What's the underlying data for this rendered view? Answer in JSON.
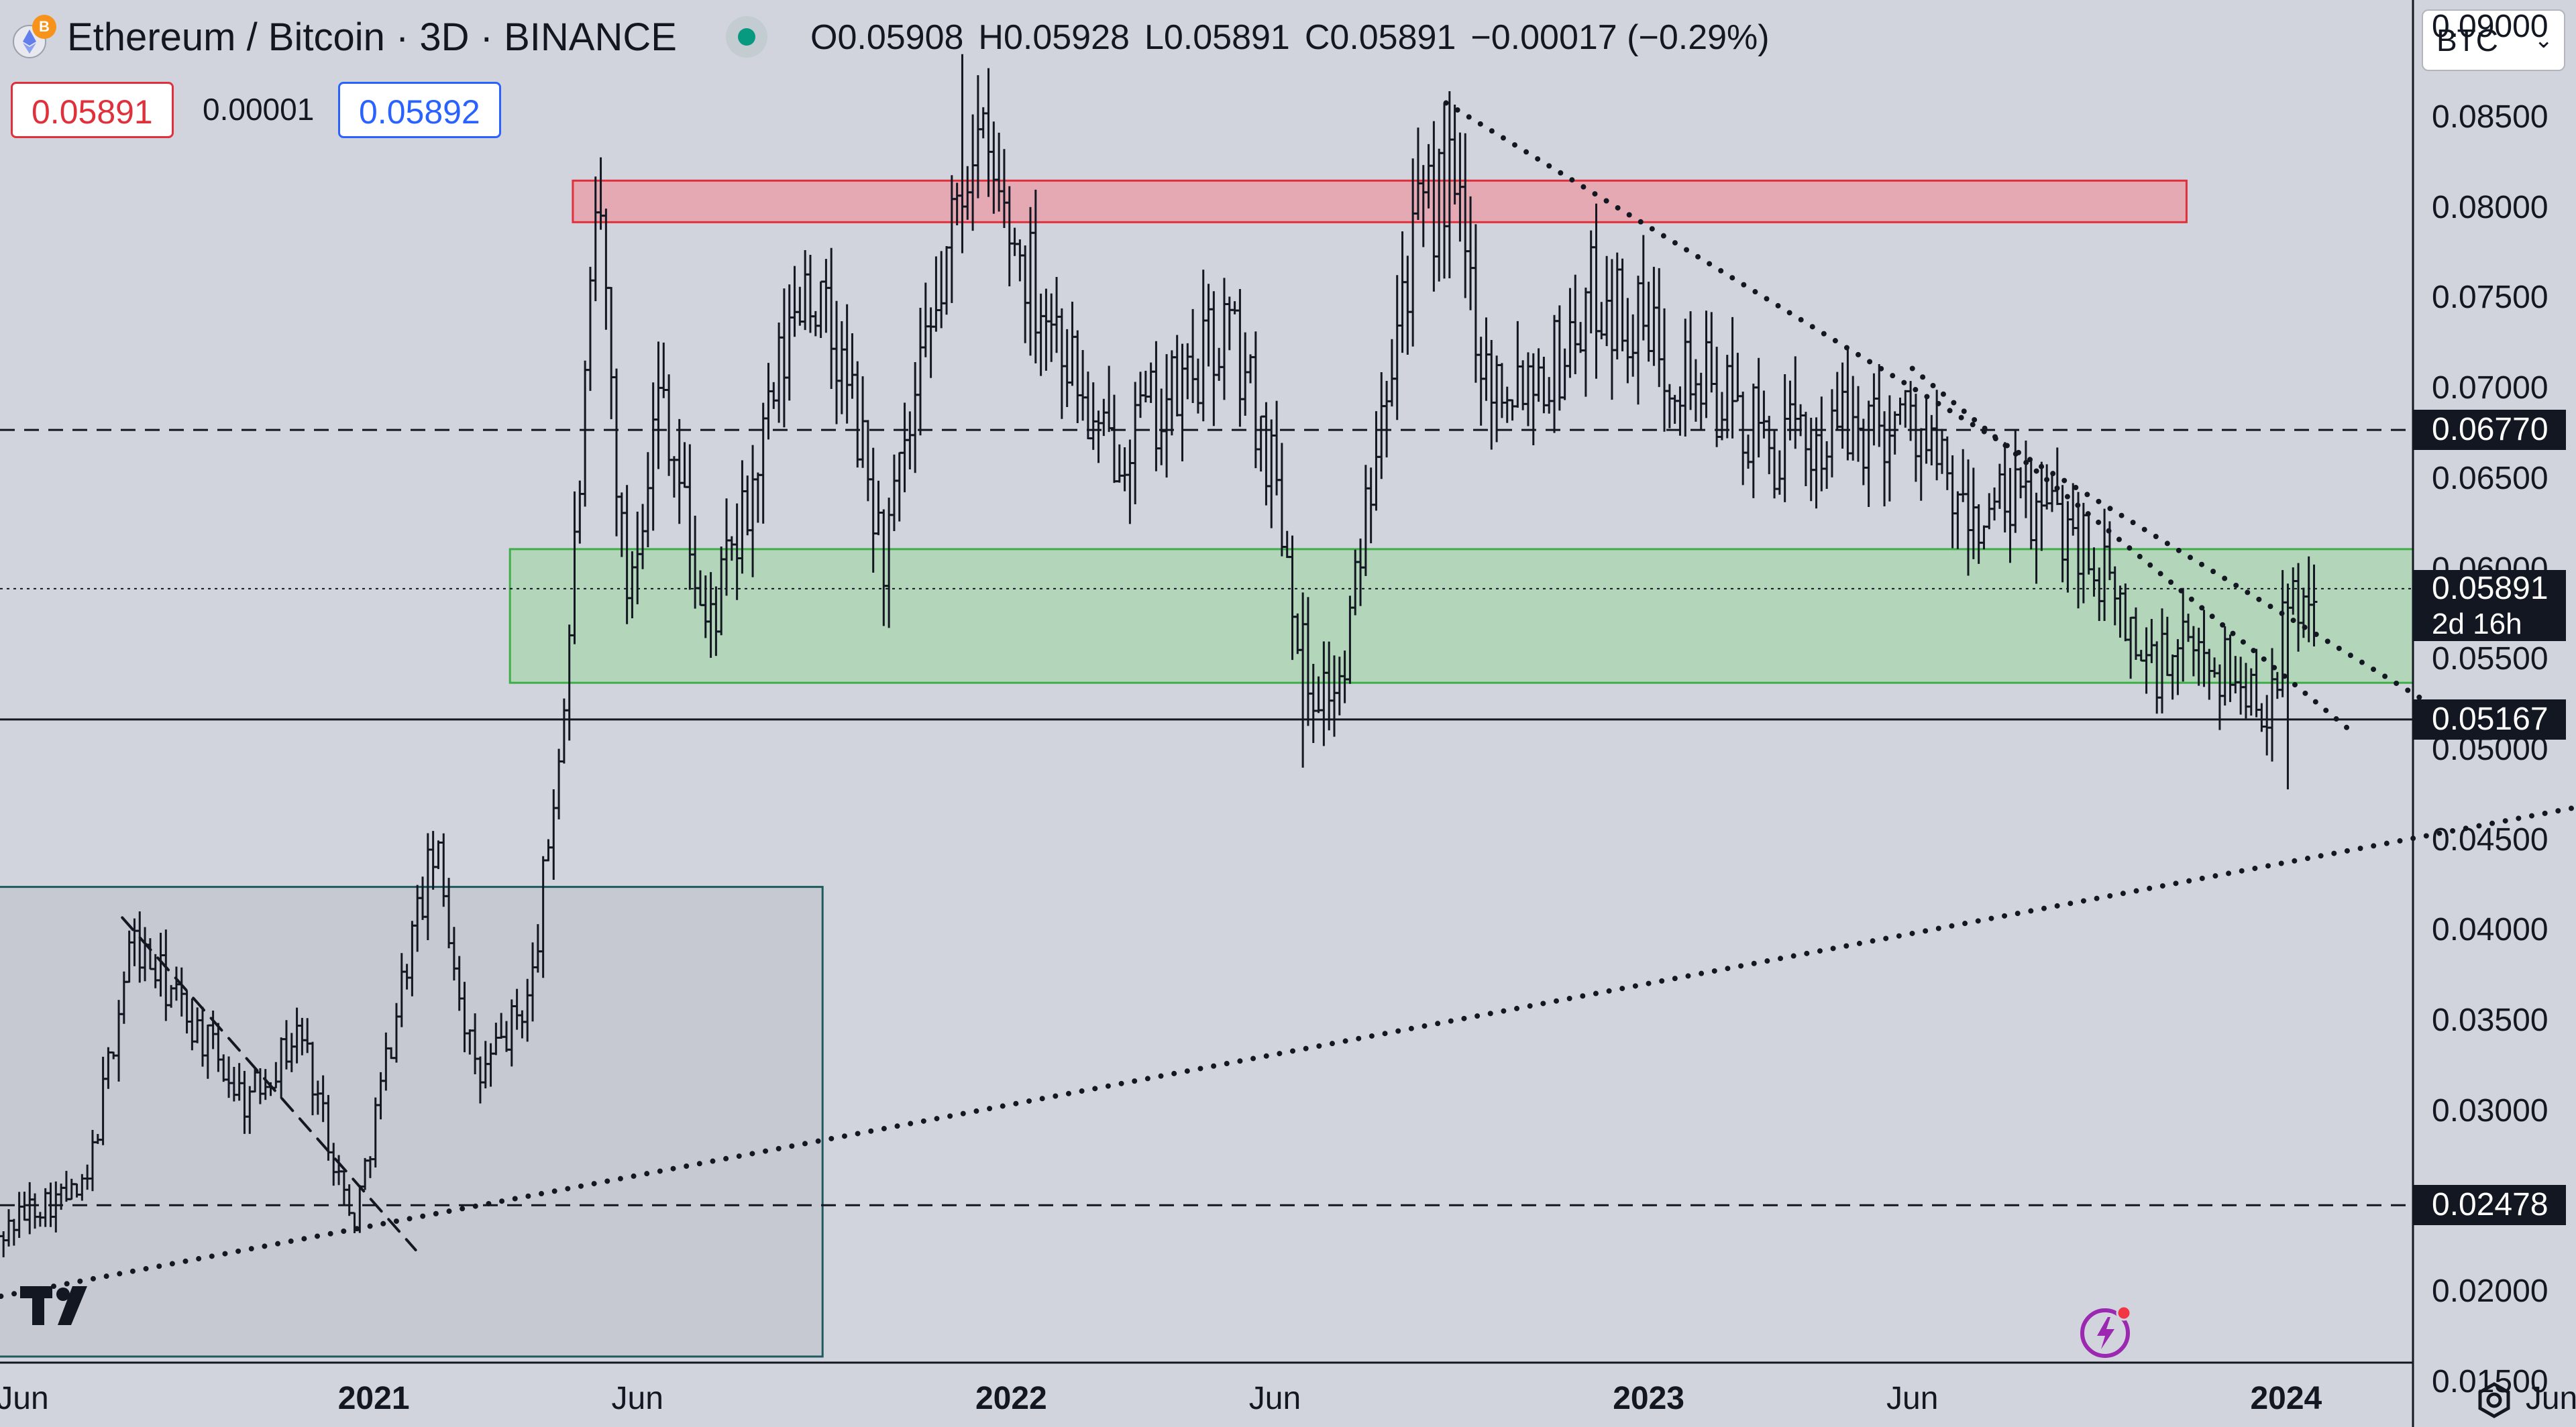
{
  "header": {
    "symbol_title": "Ethereum / Bitcoin · 3D · BINANCE",
    "ohlc": {
      "open": "O0.05908",
      "high": "H0.05928",
      "low": "L0.05891",
      "close": "C0.05891",
      "change": "−0.00017 (−0.29%)"
    },
    "sell_price": "0.05891",
    "spread": "0.00001",
    "buy_price": "0.05892",
    "currency": "BTC",
    "status_color": "#089981"
  },
  "colors": {
    "background": "#d1d4dc",
    "candle": "#131722",
    "resistance_zone_fill": "#e8a1aa",
    "resistance_zone_border": "#e0303c",
    "support_zone_fill": "#a8d5ae",
    "support_zone_border": "#3fae49",
    "range_box_border": "#1e5a5e",
    "sell": "#e0303c",
    "buy": "#2962ff"
  },
  "icons": {
    "symbol_logo": "eth-btc-logo-icon",
    "tradingview_logo": "tradingview-logo-icon",
    "lightning": "lightning-icon",
    "settings": "settings-gear-icon",
    "dropdown": "chevron-down-icon"
  },
  "y_axis": {
    "ticks": [
      "0.09000",
      "0.08500",
      "0.08000",
      "0.07500",
      "0.07000",
      "0.06500",
      "0.06000",
      "0.05500",
      "0.05000",
      "0.04500",
      "0.04000",
      "0.03500",
      "0.03000",
      "0.02000",
      "0.01500"
    ],
    "labels": {
      "level_high": "0.06770",
      "current": "0.05891",
      "countdown": "2d 16h",
      "support": "0.05167",
      "level_low": "0.02478"
    }
  },
  "x_axis": {
    "ticks": [
      {
        "label": "Jun",
        "year": false
      },
      {
        "label": "2021",
        "year": true
      },
      {
        "label": "Jun",
        "year": false
      },
      {
        "label": "2022",
        "year": true
      },
      {
        "label": "Jun",
        "year": false
      },
      {
        "label": "2023",
        "year": true
      },
      {
        "label": "Jun",
        "year": false
      },
      {
        "label": "2024",
        "year": true
      },
      {
        "label": "Jun",
        "year": false
      }
    ]
  },
  "chart_data": {
    "type": "candlestick",
    "symbol": "Ethereum / Bitcoin",
    "interval": "3D",
    "exchange": "BINANCE",
    "x_range": [
      "2020-06-01",
      "2024-06-15"
    ],
    "y_range": [
      0.0125,
      0.0915
    ],
    "grid": false,
    "price_path": [
      [
        "2020-05-25",
        0.0225
      ],
      [
        "2020-06-20",
        0.0248
      ],
      [
        "2020-07-20",
        0.0255
      ],
      [
        "2020-08-15",
        0.0395
      ],
      [
        "2020-09-15",
        0.0355
      ],
      [
        "2020-10-20",
        0.0305
      ],
      [
        "2020-11-20",
        0.0345
      ],
      [
        "2020-12-20",
        0.0235
      ],
      [
        "2021-01-20",
        0.0385
      ],
      [
        "2021-02-05",
        0.0445
      ],
      [
        "2021-03-01",
        0.0315
      ],
      [
        "2021-04-01",
        0.0365
      ],
      [
        "2021-04-20",
        0.0525
      ],
      [
        "2021-05-10",
        0.0805
      ],
      [
        "2021-05-25",
        0.0585
      ],
      [
        "2021-06-15",
        0.0705
      ],
      [
        "2021-07-10",
        0.0565
      ],
      [
        "2021-08-01",
        0.0625
      ],
      [
        "2021-09-05",
        0.0765
      ],
      [
        "2021-10-01",
        0.0695
      ],
      [
        "2021-10-20",
        0.0605
      ],
      [
        "2021-11-20",
        0.0745
      ],
      [
        "2021-12-10",
        0.0845
      ],
      [
        "2022-01-01",
        0.0785
      ],
      [
        "2022-02-01",
        0.0725
      ],
      [
        "2022-02-20",
        0.0665
      ],
      [
        "2022-04-05",
        0.0695
      ],
      [
        "2022-05-05",
        0.0735
      ],
      [
        "2022-06-01",
        0.0655
      ],
      [
        "2022-06-20",
        0.0535
      ],
      [
        "2022-07-10",
        0.0535
      ],
      [
        "2022-08-01",
        0.0705
      ],
      [
        "2022-08-20",
        0.0785
      ],
      [
        "2022-09-10",
        0.0815
      ],
      [
        "2022-10-01",
        0.0705
      ],
      [
        "2022-11-10",
        0.0715
      ],
      [
        "2022-12-01",
        0.0755
      ],
      [
        "2023-01-05",
        0.0725
      ],
      [
        "2023-02-10",
        0.0695
      ],
      [
        "2023-03-15",
        0.0665
      ],
      [
        "2023-04-15",
        0.0675
      ],
      [
        "2023-06-01",
        0.0685
      ],
      [
        "2023-07-01",
        0.0625
      ],
      [
        "2023-08-01",
        0.0635
      ],
      [
        "2023-09-01",
        0.0625
      ],
      [
        "2023-10-15",
        0.0545
      ],
      [
        "2023-11-15",
        0.0555
      ],
      [
        "2023-12-20",
        0.0525
      ],
      [
        "2024-01-05",
        0.0585
      ],
      [
        "2024-01-18",
        0.0589
      ]
    ],
    "key_points": {
      "high_2021": {
        "date": "2021-12-05",
        "value": 0.0885
      },
      "low_2022": {
        "date": "2022-06-18",
        "value": 0.049
      },
      "high_2022": {
        "date": "2022-09-07",
        "value": 0.0858
      },
      "low_2024": {
        "date": "2024-01-02",
        "value": 0.0478
      }
    },
    "zones": [
      {
        "name": "resistance",
        "from": "2021-04-25",
        "to": "2023-11-05",
        "low": 0.0792,
        "high": 0.0815
      },
      {
        "name": "support",
        "from": "2021-03-20",
        "to": "2024-04-05",
        "low": 0.0537,
        "high": 0.0611
      },
      {
        "name": "range",
        "from": "2020-05-25",
        "to": "2021-09-15",
        "low": 0.0164,
        "high": 0.0424
      }
    ],
    "horizontal_lines": [
      {
        "value": 0.0677,
        "style": "dashed"
      },
      {
        "value": 0.05891,
        "style": "dotted"
      },
      {
        "value": 0.05167,
        "style": "solid"
      },
      {
        "value": 0.02478,
        "style": "dashed"
      }
    ],
    "trendlines": [
      {
        "style": "dotted",
        "from": [
          "2020-05-25",
          0.0196
        ],
        "to": [
          "2024-06-15",
          0.0468
        ]
      },
      {
        "style": "dotted",
        "from": [
          "2022-09-07",
          0.0858
        ],
        "to": [
          "2024-04-15",
          0.0512
        ]
      },
      {
        "style": "dotted",
        "from": [
          "2023-06-01",
          0.0711
        ],
        "to": [
          "2024-02-05",
          0.0512
        ]
      },
      {
        "style": "dashed",
        "from": [
          "2020-08-10",
          0.0407
        ],
        "to": [
          "2021-01-25",
          0.0223
        ]
      }
    ],
    "last": {
      "value": 0.05891,
      "countdown": "2d 16h"
    }
  }
}
